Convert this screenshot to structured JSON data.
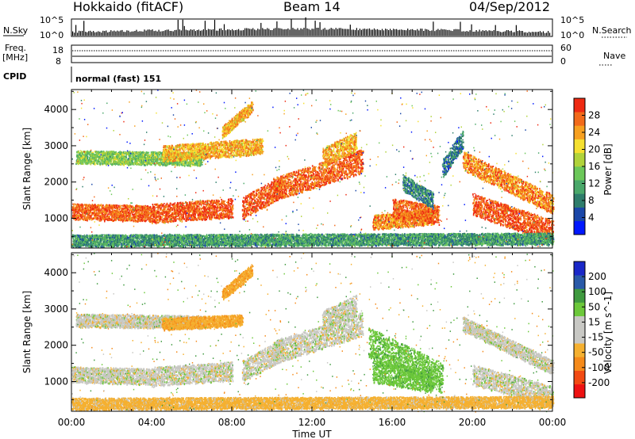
{
  "header": {
    "station": "Hokkaido (fitACF)",
    "beam": "Beam 14",
    "date": "04/Sep/2012"
  },
  "status_panels": {
    "nsky_label": "N.Sky",
    "nsky_ticks": [
      "10^5",
      "10^0"
    ],
    "nsky_right_ticks": [
      "10^5",
      "10^0"
    ],
    "nsearch_label": "N.Search",
    "freq_label_1": "Freq.",
    "freq_label_2": "[MHz]",
    "freq_ticks": [
      "18",
      "8"
    ],
    "nave_label": "Nave",
    "nave_ticks": [
      "60",
      "0"
    ],
    "cpid_label": "CPID",
    "cpid_value": "normal (fast) 151"
  },
  "chart_data": [
    {
      "type": "heatmap",
      "name": "power",
      "ylabel": "Slant Range [km]",
      "yticks": [
        1000,
        2000,
        3000,
        4000
      ],
      "ylim": [
        180,
        4550
      ],
      "xlim": [
        0,
        24
      ],
      "colorbar": {
        "label": "Power [dB]",
        "ticks": [
          "28",
          "24",
          "20",
          "16",
          "12",
          "8",
          "4"
        ],
        "colors": [
          "#0018ff",
          "#1a47a8",
          "#2e7d6b",
          "#4aa86a",
          "#6cc85a",
          "#b0d33a",
          "#f5e030",
          "#f7a020",
          "#f26a1a",
          "#ee2a12"
        ]
      },
      "bands": [
        {
          "t0": 0.0,
          "r0": 1200,
          "t1": 4.0,
          "r1": 1150,
          "w": 220,
          "v": 26
        },
        {
          "t0": 4.0,
          "r0": 1150,
          "t1": 8.0,
          "r1": 1300,
          "w": 260,
          "v": 27
        },
        {
          "t0": 0.2,
          "r0": 2700,
          "t1": 6.5,
          "r1": 2650,
          "w": 180,
          "v": 14
        },
        {
          "t0": 4.5,
          "r0": 2800,
          "t1": 9.5,
          "r1": 3000,
          "w": 220,
          "v": 22
        },
        {
          "t0": 8.5,
          "r0": 1300,
          "t1": 10.5,
          "r1": 1900,
          "w": 300,
          "v": 27
        },
        {
          "t0": 10.0,
          "r0": 1800,
          "t1": 14.5,
          "r1": 2600,
          "w": 320,
          "v": 26
        },
        {
          "t0": 12.5,
          "r0": 2700,
          "t1": 14.2,
          "r1": 3150,
          "w": 260,
          "v": 22
        },
        {
          "t0": 15.0,
          "r0": 900,
          "t1": 18.0,
          "r1": 1050,
          "w": 200,
          "v": 24
        },
        {
          "t0": 16.0,
          "r0": 1300,
          "t1": 18.3,
          "r1": 1100,
          "w": 260,
          "v": 26
        },
        {
          "t0": 16.5,
          "r0": 2000,
          "t1": 18.0,
          "r1": 1500,
          "w": 220,
          "v": 8
        },
        {
          "t0": 18.5,
          "r0": 2400,
          "t1": 19.5,
          "r1": 3200,
          "w": 260,
          "v": 7
        },
        {
          "t0": 19.5,
          "r0": 2600,
          "t1": 24.0,
          "r1": 1400,
          "w": 260,
          "v": 24
        },
        {
          "t0": 20.0,
          "r0": 1400,
          "t1": 24.0,
          "r1": 650,
          "w": 300,
          "v": 27
        },
        {
          "t0": 0.0,
          "r0": 400,
          "t1": 24.0,
          "r1": 450,
          "w": 160,
          "v": 10
        },
        {
          "t0": 7.5,
          "r0": 3400,
          "t1": 9.0,
          "r1": 4100,
          "w": 160,
          "v": 22
        }
      ]
    },
    {
      "type": "heatmap",
      "name": "velocity",
      "ylabel": "Slant Range [km]",
      "xlabel": "Time UT",
      "yticks": [
        1000,
        2000,
        3000,
        4000
      ],
      "ylim": [
        180,
        4550
      ],
      "xlim": [
        0,
        24
      ],
      "xticks": [
        "00:00",
        "04:00",
        "08:00",
        "12:00",
        "16:00",
        "20:00",
        "00:00"
      ],
      "colorbar": {
        "label": "Velocity [m s^-1]",
        "ticks": [
          "200",
          "100",
          "50",
          "15",
          "-15",
          "-50",
          "-100",
          "-200"
        ],
        "colors": [
          "#ee1212",
          "#f24a12",
          "#f58a1a",
          "#f5b030",
          "#c8c8c4",
          "#c8c8c4",
          "#6cc83a",
          "#3f9a3f",
          "#2a5aa8",
          "#1a28c8"
        ]
      },
      "bands": [
        {
          "t0": 0.0,
          "r0": 1200,
          "t1": 4.0,
          "r1": 1150,
          "w": 220,
          "v": 0
        },
        {
          "t0": 4.0,
          "r0": 1150,
          "t1": 8.0,
          "r1": 1300,
          "w": 260,
          "v": 0
        },
        {
          "t0": 0.2,
          "r0": 2700,
          "t1": 6.5,
          "r1": 2650,
          "w": 180,
          "v": -2
        },
        {
          "t0": 4.5,
          "r0": 2600,
          "t1": 8.5,
          "r1": 2700,
          "w": 160,
          "v": -40
        },
        {
          "t0": 8.5,
          "r0": 1300,
          "t1": 10.5,
          "r1": 1900,
          "w": 300,
          "v": 0
        },
        {
          "t0": 10.0,
          "r0": 1800,
          "t1": 14.5,
          "r1": 2600,
          "w": 320,
          "v": 0
        },
        {
          "t0": 12.5,
          "r0": 2700,
          "t1": 14.2,
          "r1": 3150,
          "w": 260,
          "v": 0
        },
        {
          "t0": 14.8,
          "r0": 2100,
          "t1": 18.5,
          "r1": 1100,
          "w": 420,
          "v": 35
        },
        {
          "t0": 15.0,
          "r0": 1300,
          "t1": 18.0,
          "r1": 1000,
          "w": 300,
          "v": 35
        },
        {
          "t0": 19.5,
          "r0": 2600,
          "t1": 24.0,
          "r1": 1400,
          "w": 200,
          "v": 0
        },
        {
          "t0": 20.0,
          "r0": 1200,
          "t1": 24.0,
          "r1": 600,
          "w": 280,
          "v": 0
        },
        {
          "t0": 0.0,
          "r0": 400,
          "t1": 24.0,
          "r1": 450,
          "w": 160,
          "v": -30
        },
        {
          "t0": 7.5,
          "r0": 3400,
          "t1": 9.0,
          "r1": 4100,
          "w": 160,
          "v": -40
        }
      ]
    }
  ]
}
